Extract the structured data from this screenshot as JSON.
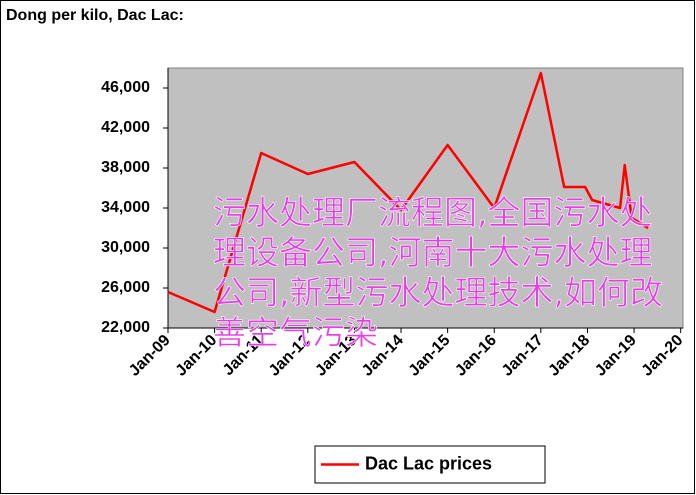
{
  "chart_data": {
    "type": "line",
    "title": "Dong per kilo, Dac Lac:",
    "x": [
      2009,
      2010,
      2011,
      2012,
      2013,
      2014,
      2015,
      2016,
      2017,
      2017.5,
      2017.95,
      2018.1,
      2018.7,
      2018.8,
      2018.95,
      2019.3
    ],
    "series": [
      {
        "name": "Dac Lac prices",
        "color": "#ff0000",
        "values": [
          25600,
          23600,
          39500,
          37400,
          38600,
          33800,
          40300,
          34000,
          47500,
          36100,
          36100,
          34800,
          34000,
          38300,
          33000,
          32000
        ]
      }
    ],
    "xlim": [
      2009,
      2020.05
    ],
    "xticks": [
      {
        "value": 2009,
        "label": "Jan-09"
      },
      {
        "value": 2010,
        "label": "Jan-10"
      },
      {
        "value": 2011,
        "label": "Jan-11"
      },
      {
        "value": 2012,
        "label": "Jan-12"
      },
      {
        "value": 2013,
        "label": "Jan-13"
      },
      {
        "value": 2014,
        "label": "Jan-14"
      },
      {
        "value": 2015,
        "label": "Jan-15"
      },
      {
        "value": 2016,
        "label": "Jan-16"
      },
      {
        "value": 2017,
        "label": "Jan-17"
      },
      {
        "value": 2018,
        "label": "Jan-18"
      },
      {
        "value": 2019,
        "label": "Jan-19"
      },
      {
        "value": 2020,
        "label": "Jan-20"
      }
    ],
    "ylim": [
      22000,
      48000
    ],
    "yticks": [
      {
        "value": 22000,
        "label": "22,000"
      },
      {
        "value": 26000,
        "label": "26,000"
      },
      {
        "value": 30000,
        "label": "30,000"
      },
      {
        "value": 34000,
        "label": "34,000"
      },
      {
        "value": 38000,
        "label": "38,000"
      },
      {
        "value": 42000,
        "label": "42,000"
      },
      {
        "value": 46000,
        "label": "46,000"
      }
    ],
    "legend": "bottom",
    "plot_background": "#c0c0c0"
  },
  "overlay": {
    "text": "污水处理厂流程图,全国污水处理设备公司,河南十大污水处理公司,新型污水处理技术,如何改善空气污染"
  }
}
